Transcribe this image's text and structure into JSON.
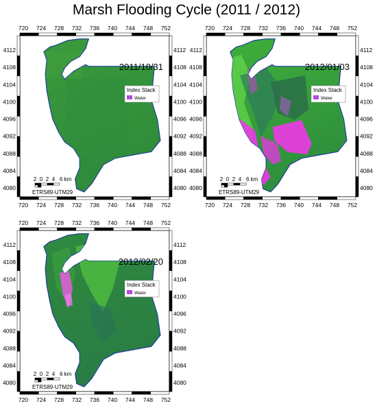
{
  "figure_title": "Marsh Flooding Cycle (2011 / 2012)",
  "x_ticks": [
    "720",
    "724",
    "728",
    "732",
    "736",
    "740",
    "744",
    "748",
    "752"
  ],
  "y_ticks": [
    "4112",
    "4108",
    "4104",
    "4100",
    "4096",
    "4092",
    "4088",
    "4084",
    "4080"
  ],
  "scale_bar": {
    "labels": [
      "2",
      "0",
      "2",
      "4",
      "6 km"
    ]
  },
  "crs_label": "ETRS89-UTM29",
  "legend": {
    "title": "Index Stack",
    "items": [
      {
        "label": "Water",
        "color": "#b44bd8"
      }
    ]
  },
  "colors": {
    "marsh_green": "#3d9a3d",
    "bright_green": "#54c83a",
    "water_magenta": "#e83ce0",
    "boundary": "#1f3d9a"
  },
  "panels": [
    {
      "date": "2011/10/31",
      "flood_level": "none"
    },
    {
      "date": "2012/01/03",
      "flood_level": "high"
    },
    {
      "date": "2012/02/20",
      "flood_level": "low"
    }
  ]
}
